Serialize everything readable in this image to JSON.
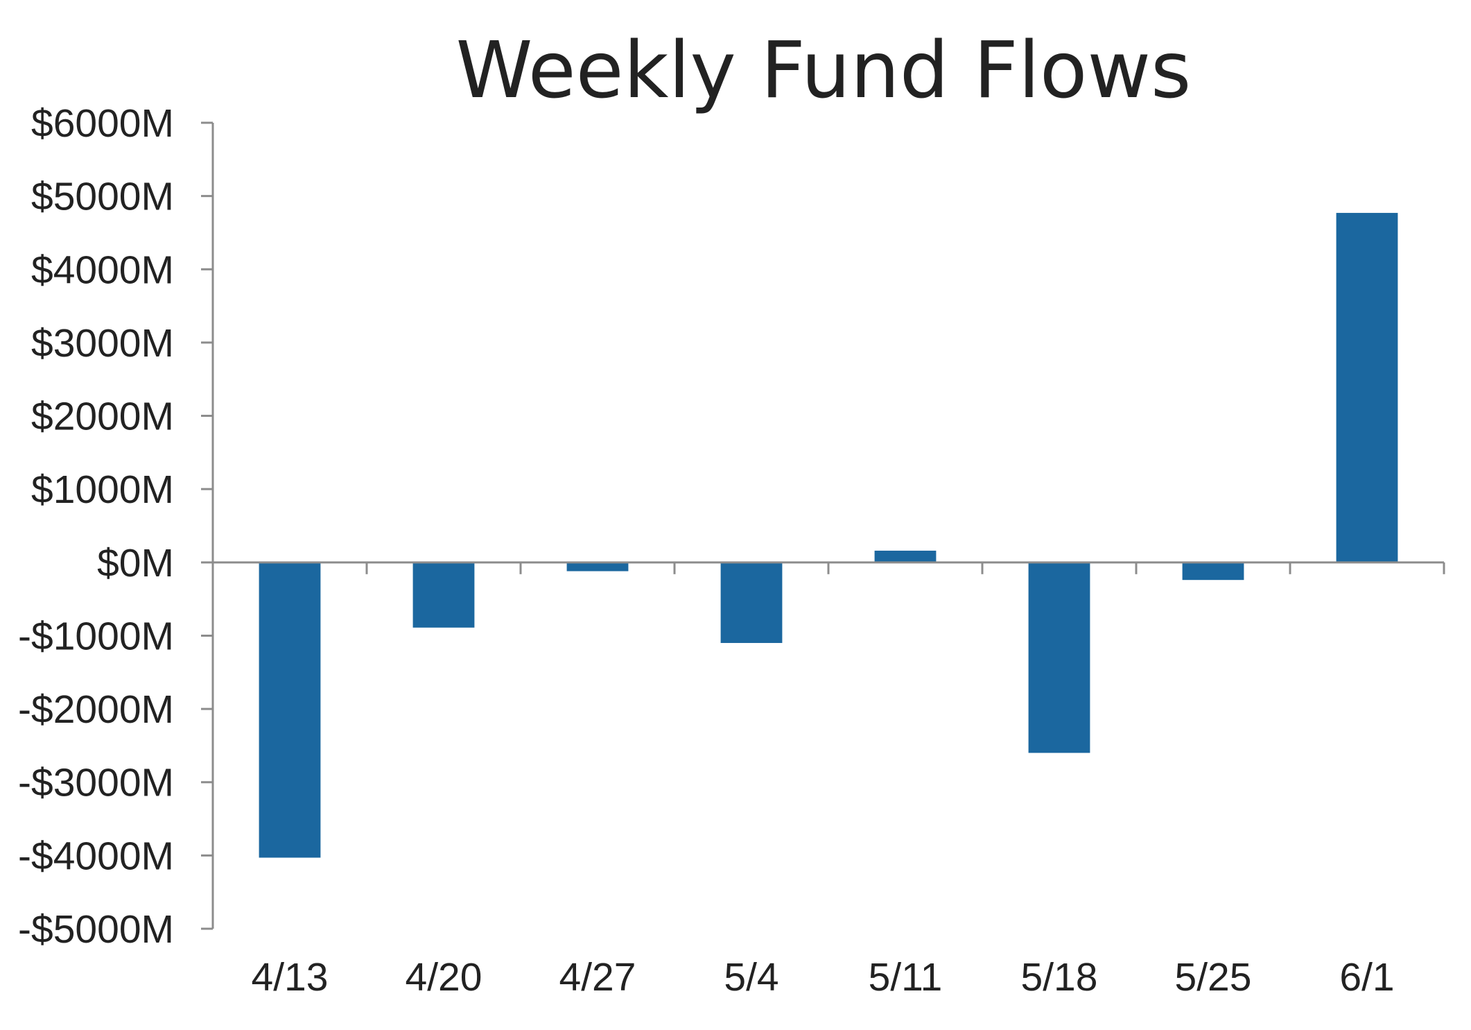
{
  "chart_data": {
    "type": "bar",
    "title": "Weekly Fund Flows",
    "xlabel": "",
    "ylabel": "",
    "categories": [
      "4/13",
      "4/20",
      "4/27",
      "5/4",
      "5/11",
      "5/18",
      "5/25",
      "6/1"
    ],
    "values": [
      -4030,
      -890,
      -120,
      -1100,
      160,
      -2600,
      -240,
      4770
    ],
    "unit": "$ millions",
    "ylim": [
      -5000,
      6000
    ],
    "yticks": [
      6000,
      5000,
      4000,
      3000,
      2000,
      1000,
      0,
      -1000,
      -2000,
      -3000,
      -4000,
      -5000
    ],
    "ytick_labels": [
      "$6000M",
      "$5000M",
      "$4000M",
      "$3000M",
      "$2000M",
      "$1000M",
      "$0M",
      "-$1000M",
      "-$2000M",
      "-$3000M",
      "-$4000M",
      "-$5000M"
    ],
    "grid": false,
    "legend": "none",
    "colors": {
      "bar": "#1b679f",
      "axis": "#8c8c8c",
      "text": "#222222"
    }
  }
}
